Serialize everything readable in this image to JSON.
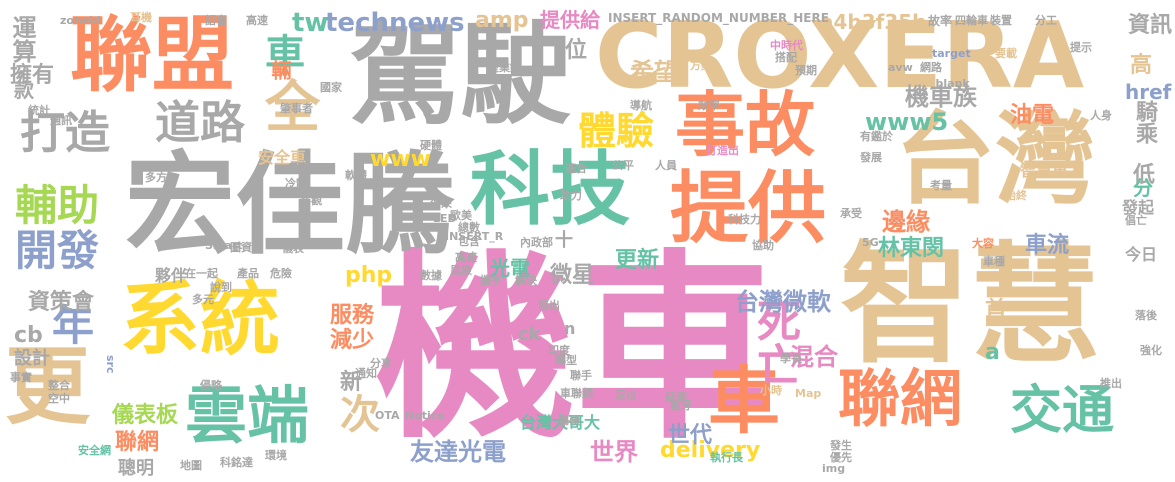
{
  "palette": {
    "pink": "#e78ac3",
    "gray": "#a8a8a8",
    "tan": "#e5c494",
    "orange": "#fc8d62",
    "green": "#66c2a5",
    "blue": "#8da0cb",
    "yellow": "#ffd92f",
    "lime": "#a6d854"
  },
  "words": [
    {
      "text": "機車",
      "weight": 1.0,
      "color": "pink"
    },
    {
      "text": "智慧",
      "weight": 0.85,
      "color": "tan"
    },
    {
      "text": "駕駛",
      "weight": 0.72,
      "color": "gray"
    },
    {
      "text": "宏佳騰",
      "weight": 0.72,
      "color": "gray"
    },
    {
      "text": "台灣",
      "weight": 0.66,
      "color": "tan"
    },
    {
      "text": "CROXERA",
      "weight": 0.62,
      "color": "tan"
    },
    {
      "text": "聯盟",
      "weight": 0.6,
      "color": "orange"
    },
    {
      "text": "科技",
      "weight": 0.58,
      "color": "green"
    },
    {
      "text": "系統",
      "weight": 0.58,
      "color": "yellow"
    },
    {
      "text": "提供",
      "weight": 0.56,
      "color": "orange"
    },
    {
      "text": "事故",
      "weight": 0.5,
      "color": "orange"
    },
    {
      "text": "更",
      "weight": 0.5,
      "color": "tan"
    },
    {
      "text": "車",
      "weight": 0.48,
      "color": "orange"
    },
    {
      "text": "聯網",
      "weight": 0.46,
      "color": "orange"
    },
    {
      "text": "雲端",
      "weight": 0.44,
      "color": "green"
    },
    {
      "text": "交通",
      "weight": 0.4,
      "color": "green"
    },
    {
      "text": "死亡",
      "weight": 0.32,
      "color": "pink"
    },
    {
      "text": "全",
      "weight": 0.32,
      "color": "tan"
    },
    {
      "text": "道路",
      "weight": 0.32,
      "color": "gray"
    },
    {
      "text": "打造",
      "weight": 0.3,
      "color": "gray"
    },
    {
      "text": "輔助",
      "weight": 0.3,
      "color": "lime"
    },
    {
      "text": "開發",
      "weight": 0.28,
      "color": "blue"
    },
    {
      "text": "體驗",
      "weight": 0.26,
      "color": "yellow"
    },
    {
      "text": "年",
      "weight": 0.28,
      "color": "blue"
    },
    {
      "text": "車",
      "weight": 0.26,
      "color": "green"
    },
    {
      "text": "次",
      "weight": 0.26,
      "color": "tan"
    },
    {
      "text": "technews",
      "weight": 0.22,
      "color": "blue"
    },
    {
      "text": "tw",
      "weight": 0.22,
      "color": "green"
    },
    {
      "text": "www5",
      "weight": 0.2,
      "color": "green"
    },
    {
      "text": "機車族",
      "weight": 0.2,
      "color": "gray"
    },
    {
      "text": "希望",
      "weight": 0.2,
      "color": "tan"
    },
    {
      "text": "邊緣",
      "weight": 0.2,
      "color": "orange"
    },
    {
      "text": "台灣微軟",
      "weight": 0.2,
      "color": "blue"
    },
    {
      "text": "混合",
      "weight": 0.2,
      "color": "pink"
    },
    {
      "text": "友達光電",
      "weight": 0.2,
      "color": "blue"
    },
    {
      "text": "世界",
      "weight": 0.2,
      "color": "pink"
    },
    {
      "text": "資策會",
      "weight": 0.18,
      "color": "gray"
    },
    {
      "text": "儀表板",
      "weight": 0.17,
      "color": "lime"
    },
    {
      "text": "聯網",
      "weight": 0.17,
      "color": "orange"
    },
    {
      "text": "聰明",
      "weight": 0.14,
      "color": "gray"
    },
    {
      "text": "a4b3f35b",
      "weight": 0.16,
      "color": "tan"
    },
    {
      "text": "amp",
      "weight": 0.18,
      "color": "tan"
    },
    {
      "text": "提供給",
      "weight": 0.16,
      "color": "pink"
    },
    {
      "text": "php",
      "weight": 0.17,
      "color": "yellow"
    },
    {
      "text": "服務",
      "weight": 0.16,
      "color": "orange"
    },
    {
      "text": "減少",
      "weight": 0.16,
      "color": "orange"
    },
    {
      "text": "新",
      "weight": 0.15,
      "color": "gray"
    },
    {
      "text": "delivery",
      "weight": 0.18,
      "color": "yellow"
    },
    {
      "text": "世代",
      "weight": 0.16,
      "color": "blue"
    },
    {
      "text": "更新",
      "weight": 0.16,
      "color": "green"
    },
    {
      "text": "微星",
      "weight": 0.18,
      "color": "gray"
    },
    {
      "text": "光電",
      "weight": 0.16,
      "color": "green"
    },
    {
      "text": "林東閔",
      "weight": 0.16,
      "color": "green"
    },
    {
      "text": "車流",
      "weight": 0.16,
      "color": "blue"
    },
    {
      "text": "油電",
      "weight": 0.16,
      "color": "orange"
    },
    {
      "text": "騎乘",
      "weight": 0.16,
      "color": "gray"
    },
    {
      "text": "資訊",
      "weight": 0.15,
      "color": "gray"
    },
    {
      "text": "高",
      "weight": 0.15,
      "color": "tan"
    },
    {
      "text": "href",
      "weight": 0.15,
      "color": "blue"
    },
    {
      "text": "低",
      "weight": 0.14,
      "color": "gray"
    },
    {
      "text": "分",
      "weight": 0.14,
      "color": "green"
    },
    {
      "text": "首",
      "weight": 0.14,
      "color": "tan"
    },
    {
      "text": "a",
      "weight": 0.16,
      "color": "green"
    },
    {
      "text": "運算",
      "weight": 0.14,
      "color": "gray"
    },
    {
      "text": "擁有",
      "weight": 0.14,
      "color": "gray"
    },
    {
      "text": "款",
      "weight": 0.14,
      "color": "gray"
    },
    {
      "text": "cb",
      "weight": 0.14,
      "color": "gray"
    },
    {
      "text": "設計",
      "weight": 0.12,
      "color": "gray"
    },
    {
      "text": "www",
      "weight": 0.14,
      "color": "yellow"
    },
    {
      "text": "ck",
      "weight": 0.12,
      "color": "gray"
    },
    {
      "text": "輛",
      "weight": 0.13,
      "color": "orange"
    },
    {
      "text": "台灣大哥大",
      "weight": 0.11,
      "color": "green"
    },
    {
      "text": "智慧車",
      "weight": 0.11,
      "color": "tan"
    },
    {
      "text": "夥伴",
      "weight": 0.11,
      "color": "gray"
    },
    {
      "text": "安全車",
      "weight": 0.11,
      "color": "tan"
    },
    {
      "text": "INSERT_RANDOM_NUMBER_HERE",
      "weight": 0.08,
      "color": "gray"
    },
    {
      "text": "故率",
      "weight": 0.08,
      "color": "gray"
    },
    {
      "text": "四輪車",
      "weight": 0.07,
      "color": "gray"
    },
    {
      "text": "裝置",
      "weight": 0.07,
      "color": "gray"
    },
    {
      "text": "分工",
      "weight": 0.07,
      "color": "gray"
    },
    {
      "text": "zoneid",
      "weight": 0.07,
      "color": "gray"
    },
    {
      "text": "耳機",
      "weight": 0.07,
      "color": "tan"
    },
    {
      "text": "語音",
      "weight": 0.07,
      "color": "gray"
    },
    {
      "text": "高速",
      "weight": 0.07,
      "color": "gray"
    },
    {
      "text": "網路",
      "weight": 0.07,
      "color": "gray"
    },
    {
      "text": "target",
      "weight": 0.07,
      "color": "blue"
    },
    {
      "text": "_blank",
      "weight": 0.07,
      "color": "gray"
    },
    {
      "text": "Smart",
      "weight": 0.07,
      "color": "gray"
    },
    {
      "text": "Notice",
      "weight": 0.07,
      "color": "gray"
    },
    {
      "text": "Map",
      "weight": 0.07,
      "color": "tan"
    },
    {
      "text": "OTA",
      "weight": 0.07,
      "color": "gray"
    },
    {
      "text": "img",
      "weight": 0.07,
      "color": "gray"
    },
    {
      "text": "src",
      "weight": 0.07,
      "color": "blue"
    },
    {
      "text": "5G",
      "weight": 0.07,
      "color": "gray"
    },
    {
      "text": "avw",
      "weight": 0.07,
      "color": "gray"
    },
    {
      "text": "十",
      "weight": 0.1,
      "color": "gray"
    },
    {
      "text": "n",
      "weight": 0.09,
      "color": "gray"
    },
    {
      "text": "內政部",
      "weight": 0.07,
      "color": "gray"
    },
    {
      "text": "產業鏈",
      "weight": 0.07,
      "color": "gray"
    },
    {
      "text": "執行長",
      "weight": 0.07,
      "color": "green"
    },
    {
      "text": "安全網",
      "weight": 0.07,
      "color": "green"
    },
    {
      "text": "科銘達",
      "weight": 0.07,
      "color": "gray"
    },
    {
      "text": "環境",
      "weight": 0.07,
      "color": "gray"
    },
    {
      "text": "地圖",
      "weight": 0.07,
      "color": "gray"
    },
    {
      "text": "藍牙",
      "weight": 0.07,
      "color": "gray"
    },
    {
      "text": "車聯網",
      "weight": 0.07,
      "color": "gray"
    },
    {
      "text": "鵬碩",
      "weight": 0.07,
      "color": "gray"
    },
    {
      "text": "足以",
      "weight": 0.07,
      "color": "gray"
    },
    {
      "text": "延遲",
      "weight": 0.07,
      "color": "gray"
    },
    {
      "text": "小時",
      "weight": 0.07,
      "color": "tan"
    },
    {
      "text": "發生",
      "weight": 0.07,
      "color": "gray"
    },
    {
      "text": "優先",
      "weight": 0.07,
      "color": "gray"
    },
    {
      "text": "學長",
      "weight": 0.07,
      "color": "gray"
    },
    {
      "text": "推出",
      "weight": 0.07,
      "color": "gray"
    },
    {
      "text": "強化",
      "weight": 0.07,
      "color": "gray"
    },
    {
      "text": "落後",
      "weight": 0.07,
      "color": "gray"
    },
    {
      "text": "今日",
      "weight": 0.08,
      "color": "gray"
    },
    {
      "text": "發起",
      "weight": 0.08,
      "color": "gray"
    },
    {
      "text": "始終",
      "weight": 0.07,
      "color": "tan"
    },
    {
      "text": "承受",
      "weight": 0.07,
      "color": "gray"
    },
    {
      "text": "考量",
      "weight": 0.07,
      "color": "gray"
    },
    {
      "text": "車種",
      "weight": 0.07,
      "color": "gray"
    },
    {
      "text": "大容",
      "weight": 0.07,
      "color": "orange"
    },
    {
      "text": "倡亡",
      "weight": 0.07,
      "color": "gray"
    },
    {
      "text": "有鑑於",
      "weight": 0.07,
      "color": "gray"
    },
    {
      "text": "發展",
      "weight": 0.07,
      "color": "gray"
    },
    {
      "text": "人員",
      "weight": 0.07,
      "color": "gray"
    },
    {
      "text": "人身",
      "weight": 0.07,
      "color": "gray"
    },
    {
      "text": "打造出",
      "weight": 0.07,
      "color": "pink"
    },
    {
      "text": "提示",
      "weight": 0.07,
      "color": "gray"
    },
    {
      "text": "要載",
      "weight": 0.07,
      "color": "tan"
    },
    {
      "text": "預期",
      "weight": 0.07,
      "color": "gray"
    },
    {
      "text": "中時代",
      "weight": 0.07,
      "color": "pink"
    },
    {
      "text": "搭配",
      "weight": 0.07,
      "color": "gray"
    },
    {
      "text": "方案",
      "weight": 0.07,
      "color": "tan"
    },
    {
      "text": "導航",
      "weight": 0.07,
      "color": "gray"
    },
    {
      "text": "效率",
      "weight": 0.07,
      "color": "gray"
    },
    {
      "text": "公平",
      "weight": 0.07,
      "color": "gray"
    },
    {
      "text": "適合",
      "weight": 0.07,
      "color": "gray"
    },
    {
      "text": "助力",
      "weight": 0.07,
      "color": "gray"
    },
    {
      "text": "科技力",
      "weight": 0.07,
      "color": "gray"
    },
    {
      "text": "協助",
      "weight": 0.07,
      "color": "gray"
    },
    {
      "text": "位",
      "weight": 0.1,
      "color": "gray"
    },
    {
      "text": "硬體",
      "weight": 0.07,
      "color": "gray"
    },
    {
      "text": "軟體",
      "weight": 0.07,
      "color": "gray"
    },
    {
      "text": "平均",
      "weight": 0.07,
      "color": "gray"
    },
    {
      "text": "冷靜",
      "weight": 0.07,
      "color": "gray"
    },
    {
      "text": "客觀",
      "weight": 0.07,
      "color": "gray"
    },
    {
      "text": "儀表",
      "weight": 0.07,
      "color": "gray"
    },
    {
      "text": "圖資",
      "weight": 0.07,
      "color": "gray"
    },
    {
      "text": "產品",
      "weight": 0.07,
      "color": "gray"
    },
    {
      "text": "危險",
      "weight": 0.07,
      "color": "gray"
    },
    {
      "text": "在一起",
      "weight": 0.07,
      "color": "gray"
    },
    {
      "text": "說到",
      "weight": 0.07,
      "color": "gray"
    },
    {
      "text": "多元",
      "weight": 0.07,
      "color": "gray"
    },
    {
      "text": "數據",
      "weight": 0.07,
      "color": "gray"
    },
    {
      "text": "高速",
      "weight": 0.07,
      "color": "gray"
    },
    {
      "text": "風險",
      "weight": 0.07,
      "color": "gray"
    },
    {
      "text": "攜手",
      "weight": 0.07,
      "color": "gray"
    },
    {
      "text": "解決",
      "weight": 0.07,
      "color": "gray"
    },
    {
      "text": "發出",
      "weight": 0.07,
      "color": "gray"
    },
    {
      "text": "印度",
      "weight": 0.07,
      "color": "gray"
    },
    {
      "text": "分享",
      "weight": 0.07,
      "color": "gray"
    },
    {
      "text": "通知",
      "weight": 0.07,
      "color": "gray"
    },
    {
      "text": "轉型",
      "weight": 0.07,
      "color": "gray"
    },
    {
      "text": "聯手",
      "weight": 0.07,
      "color": "gray"
    },
    {
      "text": "侵略",
      "weight": 0.07,
      "color": "gray"
    },
    {
      "text": "空中",
      "weight": 0.07,
      "color": "gray"
    },
    {
      "text": "整合",
      "weight": 0.07,
      "color": "gray"
    },
    {
      "text": "事實",
      "weight": 0.07,
      "color": "gray"
    },
    {
      "text": "統計",
      "weight": 0.07,
      "color": "gray"
    },
    {
      "text": "通訊",
      "weight": 0.07,
      "color": "gray"
    },
    {
      "text": "多方",
      "weight": 0.07,
      "color": "gray"
    },
    {
      "text": "國家",
      "weight": 0.07,
      "color": "gray"
    },
    {
      "text": "肇事者",
      "weight": 0.07,
      "color": "gray"
    },
    {
      "text": "總數",
      "weight": 0.07,
      "color": "gray"
    },
    {
      "text": "包含",
      "weight": 0.07,
      "color": "gray"
    },
    {
      "text": "歐美",
      "weight": 0.07,
      "color": "gray"
    },
    {
      "text": "帶來",
      "weight": 0.07,
      "color": "gray"
    },
    {
      "text": "INSERT_R",
      "weight": 0.07,
      "color": "gray"
    },
    {
      "text": "LED",
      "weight": 0.07,
      "color": "gray"
    }
  ]
}
